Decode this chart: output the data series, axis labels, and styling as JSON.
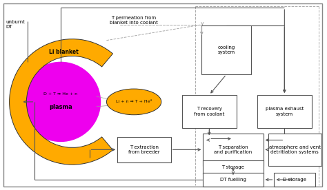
{
  "bg_color": "#ffffff",
  "border_color": "#888888",
  "plasma_color": "#ee00ee",
  "blanket_color": "#ffaa00",
  "ellipse_color": "#ffaa00",
  "box_color": "#ffffff",
  "box_edge": "#555555",
  "arrow_color": "#555555",
  "dashed_color": "#aaaaaa",
  "text_color": "#000000",
  "plasma_text": "plasma",
  "plasma_eq": "D + T ➡ He + n",
  "blanket_label": "Li blanket",
  "ellipse_label": "Li + n ⇒ T + He⁴",
  "unburnt_label": "unburnt\nDT",
  "permeation_label": "T permeation from\nblanket into coolant"
}
